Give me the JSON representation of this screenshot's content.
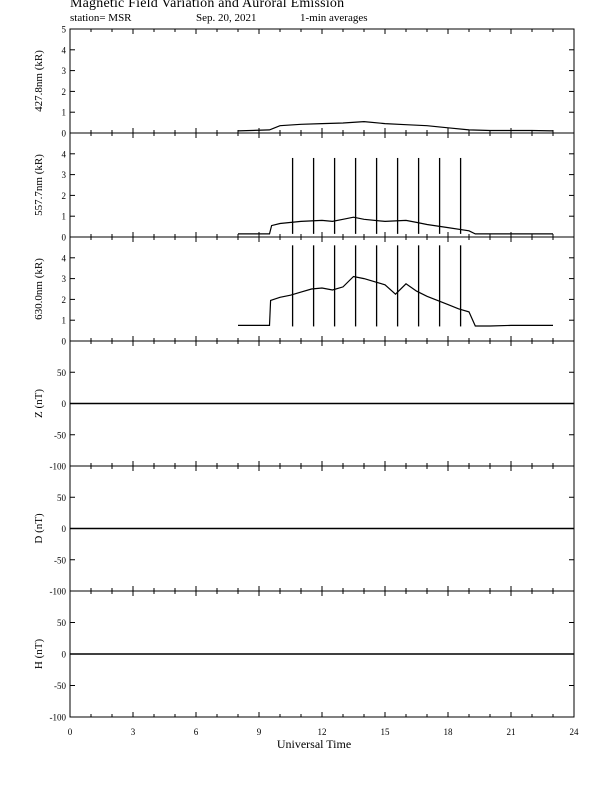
{
  "header": {
    "title": "Magnetic Field Variation and Auroral Emission",
    "station": "station= MSR",
    "date": "Sep. 20, 2021",
    "averaging": "1-min averages"
  },
  "chart_data": {
    "type": "line",
    "xlabel": "Universal Time",
    "xlim": [
      0,
      24
    ],
    "xticks": [
      "0",
      "3",
      "6",
      "9",
      "12",
      "15",
      "18",
      "21",
      "24"
    ],
    "panels": [
      {
        "id": "p4278",
        "ylabel": "427.8nm (kR)",
        "ylim": [
          0,
          5
        ],
        "yticks": [
          "0",
          "1",
          "2",
          "3",
          "4",
          "5"
        ],
        "x": [
          8.0,
          9.5,
          10.0,
          11.0,
          12.0,
          13.0,
          14.0,
          15.0,
          16.0,
          17.0,
          18.0,
          19.0,
          20.0,
          21.0,
          22.0,
          23.0
        ],
        "y": [
          0.1,
          0.15,
          0.35,
          0.42,
          0.45,
          0.48,
          0.55,
          0.45,
          0.4,
          0.35,
          0.25,
          0.15,
          0.12,
          0.12,
          0.12,
          0.1
        ],
        "spikes": []
      },
      {
        "id": "p5577",
        "ylabel": "557.7nm (kR)",
        "ylim": [
          0,
          5
        ],
        "yticks": [
          "0",
          "1",
          "2",
          "3",
          "4"
        ],
        "x": [
          8.0,
          9.5,
          9.6,
          10.0,
          11.0,
          12.0,
          12.5,
          13.0,
          13.5,
          14.0,
          15.0,
          16.0,
          16.5,
          17.0,
          18.0,
          19.0,
          19.3,
          20.0,
          21.0,
          22.0,
          23.0
        ],
        "y": [
          0.15,
          0.15,
          0.55,
          0.65,
          0.75,
          0.8,
          0.75,
          0.85,
          0.95,
          0.85,
          0.75,
          0.8,
          0.7,
          0.6,
          0.45,
          0.3,
          0.15,
          0.15,
          0.15,
          0.15,
          0.15
        ],
        "spikes": [
          10.6,
          11.6,
          12.6,
          13.6,
          14.6,
          15.6,
          16.6,
          17.6,
          18.6
        ],
        "spike_top": 3.8
      },
      {
        "id": "p6300",
        "ylabel": "630.0nm (kR)",
        "ylim": [
          0,
          5
        ],
        "yticks": [
          "0",
          "1",
          "2",
          "3",
          "4"
        ],
        "x": [
          8.0,
          9.5,
          9.55,
          10.0,
          10.5,
          11.0,
          11.5,
          12.0,
          12.5,
          13.0,
          13.5,
          14.0,
          14.5,
          15.0,
          15.5,
          16.0,
          16.5,
          17.0,
          17.5,
          18.0,
          18.5,
          19.0,
          19.3,
          20.0,
          21.0,
          22.0,
          23.0
        ],
        "y": [
          0.75,
          0.75,
          1.95,
          2.1,
          2.2,
          2.35,
          2.5,
          2.55,
          2.45,
          2.6,
          3.1,
          3.0,
          2.85,
          2.7,
          2.25,
          2.75,
          2.4,
          2.15,
          1.95,
          1.75,
          1.55,
          1.4,
          0.72,
          0.72,
          0.75,
          0.75,
          0.75
        ],
        "spikes": [
          10.6,
          11.6,
          12.6,
          13.6,
          14.6,
          15.6,
          16.6,
          17.6,
          18.6
        ],
        "spike_bottom": 0.7,
        "spike_top": 4.6
      },
      {
        "id": "pZ",
        "ylabel": "Z (nT)",
        "ylim": [
          -100,
          100
        ],
        "yticks": [
          "-100",
          "-50",
          "0",
          "50"
        ],
        "x": [
          0,
          24
        ],
        "y": [
          0,
          0
        ],
        "spikes": []
      },
      {
        "id": "pD",
        "ylabel": "D (nT)",
        "ylim": [
          -100,
          100
        ],
        "yticks": [
          "-100",
          "-50",
          "0",
          "50"
        ],
        "x": [
          0,
          24
        ],
        "y": [
          0,
          0
        ],
        "spikes": []
      },
      {
        "id": "pH",
        "ylabel": "H (nT)",
        "ylim": [
          -100,
          100
        ],
        "yticks": [
          "-100",
          "-50",
          "0",
          "50"
        ],
        "x": [
          0,
          24
        ],
        "y": [
          0,
          0
        ],
        "spikes": []
      }
    ]
  }
}
